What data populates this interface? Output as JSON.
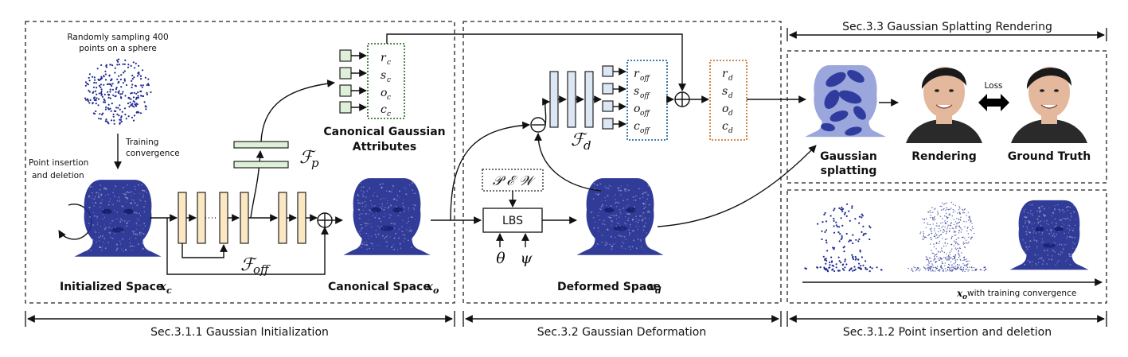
{
  "sections": {
    "init": "Sec.3.1.1 Gaussian Initialization",
    "deform": "Sec.3.2 Gaussian Deformation",
    "render": "Sec.3.3 Gaussian Splatting Rendering",
    "insertion": "Sec.3.1.2 Point insertion and deletion"
  },
  "init_panel": {
    "sampling_line1": "Randomly sampling 400",
    "sampling_line2": "points on a sphere",
    "training_line1": "Training",
    "training_line2": "convergence",
    "insertion_line1": "Point insertion",
    "insertion_line2": "and deletion",
    "f_off": "ℱ",
    "f_off_sub": "off",
    "f_p": "ℱ",
    "f_p_sub": "p",
    "initialized_label": "Initialized Space",
    "initialized_var": "x",
    "initialized_sub": "c",
    "canonical_space_label": "Canonical Space",
    "canonical_var": "x",
    "canonical_sub": "o",
    "cga_line1": "Canonical Gaussian",
    "cga_line2": "Attributes",
    "canonical_attrs": [
      {
        "v": "r",
        "s": "c"
      },
      {
        "v": "s",
        "s": "c"
      },
      {
        "v": "o",
        "s": "c"
      },
      {
        "v": "c",
        "s": "c"
      }
    ]
  },
  "deform_panel": {
    "pew": "𝒫 ℰ 𝒲",
    "lbs": "LBS",
    "theta": "θ",
    "psi": "ψ",
    "f_d": "ℱ",
    "f_d_sub": "d",
    "offset_attrs": [
      {
        "v": "r",
        "s": "off"
      },
      {
        "v": "s",
        "s": "off"
      },
      {
        "v": "o",
        "s": "off"
      },
      {
        "v": "c",
        "s": "off"
      }
    ],
    "deformed_attrs": [
      {
        "v": "r",
        "s": "d"
      },
      {
        "v": "s",
        "s": "d"
      },
      {
        "v": "o",
        "s": "d"
      },
      {
        "v": "c",
        "s": "d"
      }
    ],
    "deformed_label": "Deformed Space",
    "deformed_var": "x",
    "deformed_sub": "d"
  },
  "render_panel": {
    "gs_line1": "Gaussian",
    "gs_line2": "splatting",
    "rendering": "Rendering",
    "ground_truth": "Ground Truth",
    "loss": "Loss"
  },
  "insertion_panel": {
    "axis_var": "x",
    "axis_sub": "o",
    "axis_text": " with training convergence"
  },
  "colors": {
    "point_cloud": "#1f2a8f",
    "splat_fill": "#9aa6dc",
    "splat_blob": "#2f3c9e",
    "skin": "#e3b89c",
    "hair": "#1a1a1a",
    "layer_yellow": "#fbe8c2",
    "layer_blue": "#dde7f3",
    "layer_green": "#dff0d8",
    "green_dotted_box": "#3a7a3a",
    "blue_dotted_box": "#2a6aa0",
    "orange_dotted_box": "#d07a30"
  }
}
